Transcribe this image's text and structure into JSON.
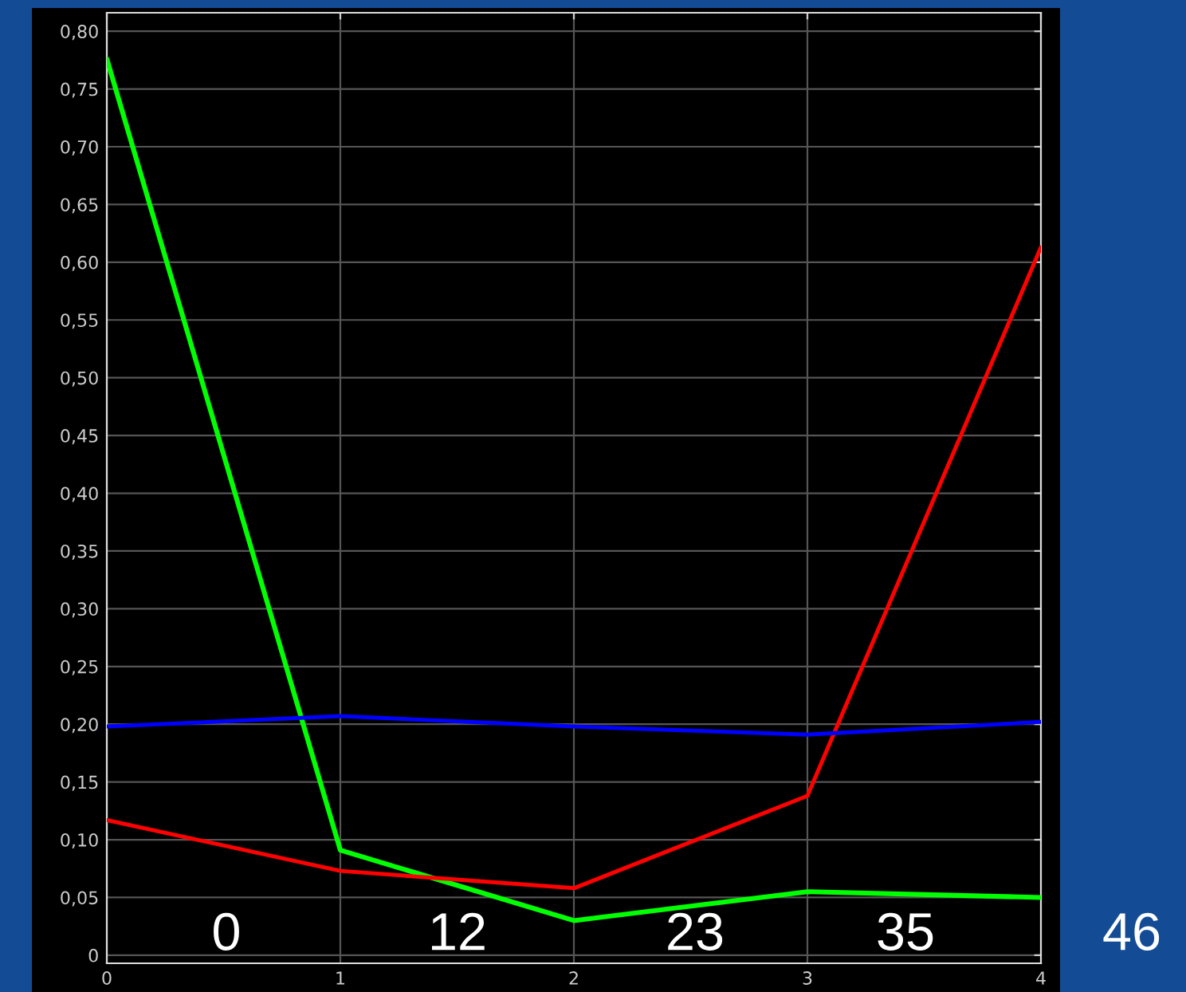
{
  "chart_data": {
    "type": "line",
    "x": [
      0,
      1,
      2,
      3,
      4
    ],
    "series": [
      {
        "color": "#00ff00",
        "values": [
          0.776,
          0.091,
          0.03,
          0.055,
          0.05
        ]
      },
      {
        "color": "#ff0000",
        "values": [
          0.117,
          0.073,
          0.058,
          0.138,
          0.613
        ]
      },
      {
        "color": "#0000ff",
        "values": [
          0.198,
          0.207,
          0.198,
          0.191,
          0.202
        ]
      }
    ],
    "xlim": [
      0,
      4
    ],
    "xticks": [
      0,
      1,
      2,
      3,
      4
    ],
    "ylim": [
      -0.007,
      0.816
    ],
    "yticks": [
      {
        "value": 0,
        "label": "0"
      },
      {
        "value": 0.05,
        "label": "0,05"
      },
      {
        "value": 0.1,
        "label": "0,10"
      },
      {
        "value": 0.15,
        "label": "0,15"
      },
      {
        "value": 0.2,
        "label": "0,20"
      },
      {
        "value": 0.25,
        "label": "0,25"
      },
      {
        "value": 0.3,
        "label": "0,30"
      },
      {
        "value": 0.35,
        "label": "0,35"
      },
      {
        "value": 0.4,
        "label": "0,40"
      },
      {
        "value": 0.45,
        "label": "0,45"
      },
      {
        "value": 0.5,
        "label": "0,50"
      },
      {
        "value": 0.55,
        "label": "0,55"
      },
      {
        "value": 0.6,
        "label": "0,60"
      },
      {
        "value": 0.65,
        "label": "0,65"
      },
      {
        "value": 0.7,
        "label": "0,70"
      },
      {
        "value": 0.75,
        "label": "0,75"
      },
      {
        "value": 0.8,
        "label": "0,80"
      }
    ],
    "grid": true,
    "legend": false,
    "marker": "none",
    "line_style": "solid",
    "annotations": [
      "0",
      "12",
      "23",
      "35",
      "46"
    ]
  }
}
